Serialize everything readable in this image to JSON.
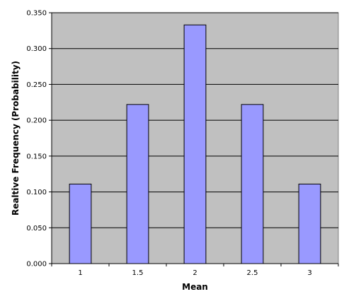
{
  "chart_data": {
    "type": "bar",
    "categories": [
      "1",
      "1.5",
      "2",
      "2.5",
      "3"
    ],
    "values": [
      0.111,
      0.222,
      0.333,
      0.222,
      0.111
    ],
    "title": "",
    "xlabel": "Mean",
    "ylabel": "Realtive Frequency (Probability)",
    "ylim": [
      0,
      0.35
    ],
    "yticks": [
      "0.000",
      "0.050",
      "0.100",
      "0.150",
      "0.200",
      "0.250",
      "0.300",
      "0.350"
    ],
    "grid": true,
    "legend": "none",
    "colors": {
      "plot_background": "#c0c0c0",
      "bar_fill": "#9999ff",
      "bar_stroke": "#000000",
      "gridline": "#000000"
    }
  }
}
